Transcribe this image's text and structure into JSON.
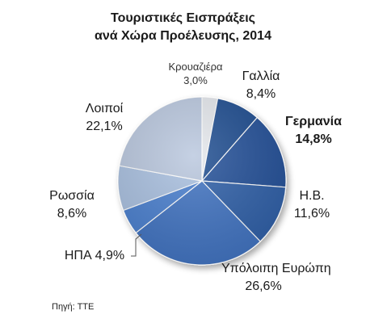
{
  "chart_data": {
    "type": "pie",
    "title_lines": [
      "Τουριστικές Εισπράξεις",
      "ανά Χώρα Προέλευσης, 2014"
    ],
    "source": "Πηγή: ΤΤΕ",
    "start_angle_deg": -90,
    "slices": [
      {
        "name": "Κρουαζιέρα",
        "value_label": "3,0%",
        "value": 3.0,
        "color": "#e4e7ec"
      },
      {
        "name": "Γαλλία",
        "value_label": "8,4%",
        "value": 8.4,
        "color": "#1f4c8f"
      },
      {
        "name": "Γερμανία",
        "value_label": "14,8%",
        "value": 14.8,
        "color": "#244f98",
        "bold": true
      },
      {
        "name": "Η.Β.",
        "value_label": "11,6%",
        "value": 11.6,
        "color": "#2e5ea8"
      },
      {
        "name": "Υπόλοιπη Ευρώπη",
        "value_label": "26,6%",
        "value": 26.6,
        "color": "#3f73c2"
      },
      {
        "name": "ΗΠΑ",
        "value_label": "4,9%",
        "value": 4.9,
        "color": "#4a7fcf"
      },
      {
        "name": "Ρωσσία",
        "value_label": "8,6%",
        "value": 8.6,
        "color": "#a9c0e0"
      },
      {
        "name": "Λοιποί",
        "value_label": "22,1%",
        "value": 22.1,
        "color": "#b9c7de"
      }
    ]
  }
}
